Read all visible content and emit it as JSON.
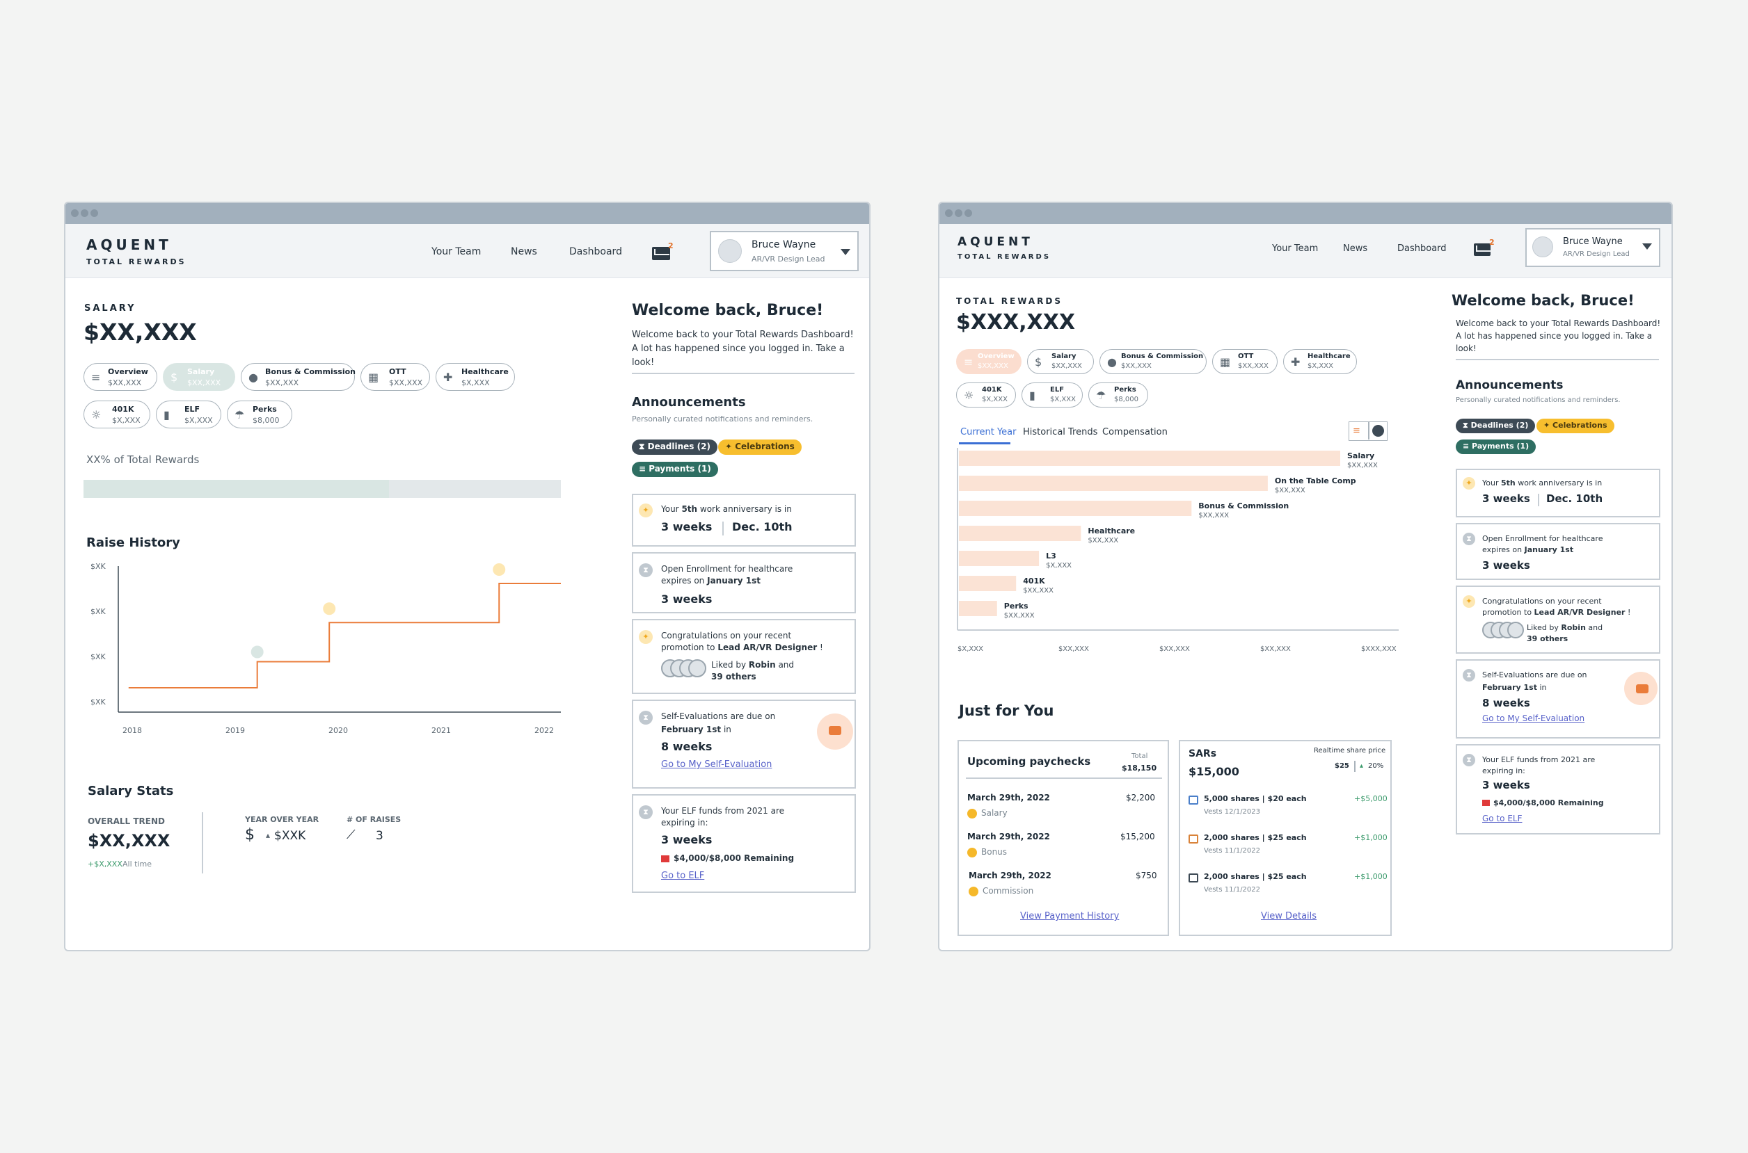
{
  "app": {
    "brand": "AQUENT",
    "subbrand": "TOTAL REWARDS",
    "mail_count": "2"
  },
  "nav": [
    "Your Team",
    "News",
    "Dashboard"
  ],
  "user": {
    "name": "Bruce Wayne",
    "role": "AR/VR Design Lead"
  },
  "left": {
    "section_label": "SALARY",
    "amount": "$XX,XXX",
    "pills": [
      {
        "title": "Overview",
        "value": "$XX,XXX",
        "icon": "≡"
      },
      {
        "title": "Salary",
        "value": "$XX,XXX",
        "icon": "$"
      },
      {
        "title": "Bonus & Commission",
        "value": "$XX,XXX",
        "icon": "●"
      },
      {
        "title": "OTT",
        "value": "$XX,XXX",
        "icon": "▦"
      },
      {
        "title": "Healthcare",
        "value": "$X,XXX",
        "icon": "✚"
      },
      {
        "title": "401K",
        "value": "$X,XXX",
        "icon": "☼"
      },
      {
        "title": "ELF",
        "value": "$X,XXX",
        "icon": "▮"
      },
      {
        "title": "Perks",
        "value": "$8,000",
        "icon": "☂"
      }
    ],
    "pct_label": "XX% of Total Rewards",
    "pct_fill": 0.64,
    "raise_title": "Raise History",
    "raise_y": [
      "$XK",
      "$XK",
      "$XK",
      "$XK"
    ],
    "raise_x": [
      "2018",
      "2019",
      "2020",
      "2021",
      "2022"
    ],
    "stats_title": "Salary Stats",
    "overall_label": "OVERALL TREND",
    "overall_value": "$XX,XXX",
    "overall_change": "+$X,XXX",
    "overall_period": "All time",
    "yoy_label": "YEAR OVER YEAR",
    "yoy_value": "$XXK",
    "raises_label": "# OF RAISES",
    "raises_value": "3"
  },
  "welcome": {
    "title": "Welcome back, Bruce!",
    "body": "Welcome back to your Total Rewards Dashboard! A lot has happened since you logged in. Take a look!"
  },
  "announcements": {
    "title": "Announcements",
    "subtitle": "Personally curated notifications and reminders.",
    "tags": [
      "Deadlines (2)",
      "Celebrations",
      "Payments (1)"
    ],
    "items": [
      {
        "pre": "Your ",
        "strong": "5th",
        "post": " work anniversary is in",
        "big": "3 weeks",
        "date": "Dec. 10th"
      },
      {
        "line1": "Open Enrollment for healthcare",
        "line2pre": "expires on ",
        "line2strong": "January 1st",
        "big": "3 weeks"
      },
      {
        "line1": "Congratulations on your recent",
        "line2pre": "promotion to ",
        "line2strong": "Lead AR/VR Designer",
        "line2post": " !",
        "likes_pre": "Liked by ",
        "likes_name": "Robin",
        "likes_and": " and",
        "likes_others": "39 others"
      },
      {
        "line1": "Self-Evaluations are due on",
        "strong": "February 1st",
        "post": "  in",
        "big": "8 weeks",
        "link": "Go to My Self-Evaluation"
      },
      {
        "line1": "Your ELF funds from 2021 are",
        "line2": "expiring in:",
        "big": "3 weeks",
        "remaining": "$4,000/$8,000 Remaining",
        "link": "Go to ELF"
      }
    ]
  },
  "right": {
    "section_label": "TOTAL REWARDS",
    "amount": "$XXX,XXX",
    "pills": [
      {
        "title": "Overview",
        "value": "$XX,XXX",
        "icon": "≡"
      },
      {
        "title": "Salary",
        "value": "$XX,XXX",
        "icon": "$"
      },
      {
        "title": "Bonus & Commission",
        "value": "$XX,XXX",
        "icon": "●"
      },
      {
        "title": "OTT",
        "value": "$XX,XXX",
        "icon": "▦"
      },
      {
        "title": "Healthcare",
        "value": "$X,XXX",
        "icon": "✚"
      },
      {
        "title": "401K",
        "value": "$X,XXX",
        "icon": "☼"
      },
      {
        "title": "ELF",
        "value": "$X,XXX",
        "icon": "▮"
      },
      {
        "title": "Perks",
        "value": "$8,000",
        "icon": "☂"
      }
    ],
    "tabs": [
      "Current Year",
      "Historical Trends",
      "Compensation"
    ],
    "just_title": "Just for You",
    "pay": {
      "title": "Upcoming paychecks",
      "total_label": "Total",
      "total": "$18,150",
      "rows": [
        {
          "date": "March 29th, 2022",
          "amount": "$2,200",
          "type": "Salary"
        },
        {
          "date": "March 29th, 2022",
          "amount": "$15,200",
          "type": "Bonus"
        },
        {
          "date": "March 29th, 2022",
          "amount": "$750",
          "type": "Commission"
        }
      ],
      "link": "View Payment History"
    },
    "sars": {
      "title": "SARs",
      "value": "$15,000",
      "price_label": "Realtime share price",
      "price": "$25",
      "change": "20%",
      "rows": [
        {
          "desc": "5,000 shares | $20 each",
          "gain": "+$5,000",
          "vests": "Vests 12/1/2023"
        },
        {
          "desc": "2,000 shares | $25 each",
          "gain": "+$1,000",
          "vests": "Vests 11/1/2022"
        },
        {
          "desc": "2,000 shares | $25 each",
          "gain": "+$1,000",
          "vests": "Vests 11/1/2022"
        }
      ],
      "link": "View Details"
    }
  },
  "chart_data": [
    {
      "type": "bar",
      "orientation": "horizontal",
      "title": "Current Year",
      "categories": [
        "Salary",
        "On the Table Comp",
        "Bonus & Commission",
        "Healthcare",
        "L3",
        "401K",
        "Perks"
      ],
      "value_labels": [
        "$XX,XXX",
        "$XX,XXX",
        "$XX,XXX",
        "$XX,XXX",
        "$X,XXX",
        "$XX,XXX",
        "$XX,XXX"
      ],
      "values": [
        100,
        81,
        61,
        32,
        21,
        15,
        10
      ],
      "x_tick_labels": [
        "$X,XXX",
        "$XX,XXX",
        "$XX,XXX",
        "$XX,XXX",
        "$XXX,XXX"
      ]
    },
    {
      "type": "line",
      "title": "Raise History",
      "step": true,
      "x": [
        2018,
        2019.25,
        2019.95,
        2021.6,
        2022.2
      ],
      "y": [
        1,
        1.5,
        2.25,
        3,
        3
      ],
      "y_tick_labels": [
        "$XK",
        "$XK",
        "$XK",
        "$XK"
      ],
      "x_tick_labels": [
        "2018",
        "2019",
        "2020",
        "2021",
        "2022"
      ]
    }
  ],
  "colors": {
    "accent": "#ea7c3a",
    "teal": "#2e6e62",
    "link": "#5862c9",
    "gold": "#f7be2e"
  }
}
